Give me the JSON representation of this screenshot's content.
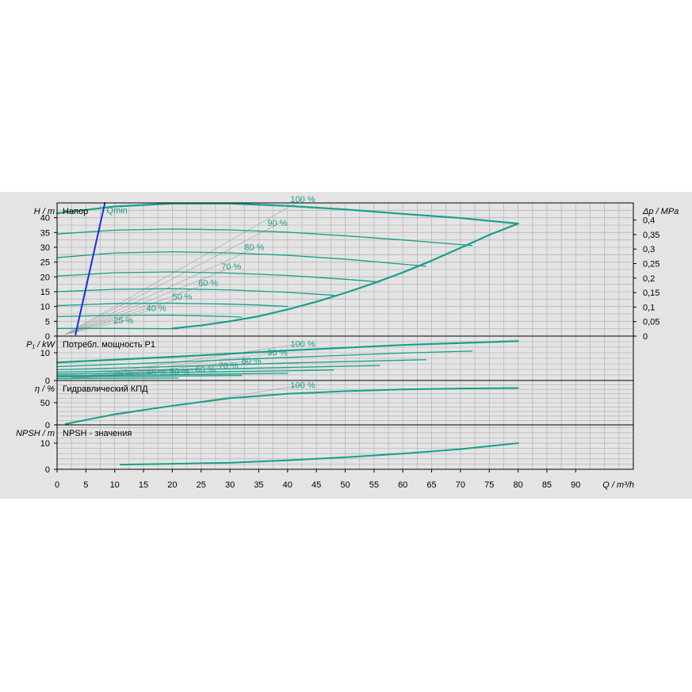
{
  "colors": {
    "panel_bg": "#e4e4e4",
    "plot_bg": "#e4e4e4",
    "grid": "#b8b8b8",
    "curve": "#16a08a",
    "curve_thin": "#2aa88e",
    "label_teal": "#1aa08a",
    "guide": "#a0a0a0",
    "qmin": "#1a2fd8",
    "axis": "#000000"
  },
  "axis": {
    "x_label": "Q / m³/h",
    "x_ticks": [
      0,
      5,
      10,
      15,
      20,
      25,
      30,
      35,
      40,
      45,
      50,
      55,
      60,
      65,
      70,
      75,
      80,
      85,
      90
    ]
  },
  "chart_data": [
    {
      "type": "line",
      "panel": "head",
      "title": "Напор",
      "ylabel": "H / m",
      "ylabel_right": "Δp / MPa",
      "xlim": [
        0,
        100
      ],
      "ylim": [
        0,
        45
      ],
      "y_ticks": [
        0,
        5,
        10,
        15,
        20,
        25,
        30,
        35,
        40
      ],
      "y2_ticks": [
        "0",
        "0,05",
        "0,1",
        "0,15",
        "0,2",
        "0,25",
        "0,3",
        "0,35",
        "0,4"
      ],
      "qmin_label": "Qmin",
      "series": [
        {
          "name": "100 %",
          "points": [
            [
              0,
              41.5
            ],
            [
              10,
              43.8
            ],
            [
              20,
              44.8
            ],
            [
              30,
              44.8
            ],
            [
              40,
              44.0
            ],
            [
              50,
              42.8
            ],
            [
              60,
              41.3
            ],
            [
              70,
              39.9
            ],
            [
              80,
              38.0
            ]
          ]
        },
        {
          "name": "90 %",
          "points": [
            [
              0,
              34.5
            ],
            [
              10,
              35.8
            ],
            [
              20,
              36.2
            ],
            [
              30,
              35.9
            ],
            [
              40,
              35.1
            ],
            [
              50,
              33.9
            ],
            [
              60,
              32.5
            ],
            [
              65,
              31.7
            ],
            [
              72,
              30.6
            ]
          ]
        },
        {
          "name": "80 %",
          "points": [
            [
              0,
              26.5
            ],
            [
              10,
              28.1
            ],
            [
              20,
              28.5
            ],
            [
              30,
              28.1
            ],
            [
              40,
              27.3
            ],
            [
              50,
              26.0
            ],
            [
              60,
              24.3
            ],
            [
              64,
              23.6
            ]
          ]
        },
        {
          "name": "70 %",
          "points": [
            [
              0,
              20.3
            ],
            [
              10,
              21.4
            ],
            [
              20,
              21.7
            ],
            [
              30,
              21.3
            ],
            [
              40,
              20.5
            ],
            [
              50,
              19.2
            ],
            [
              56,
              18.3
            ]
          ]
        },
        {
          "name": "60 %",
          "points": [
            [
              0,
              15.0
            ],
            [
              10,
              15.8
            ],
            [
              20,
              16.0
            ],
            [
              30,
              15.6
            ],
            [
              40,
              14.8
            ],
            [
              48,
              13.8
            ]
          ]
        },
        {
          "name": "50 %",
          "points": [
            [
              0,
              10.3
            ],
            [
              10,
              11.0
            ],
            [
              20,
              11.1
            ],
            [
              30,
              10.8
            ],
            [
              35,
              10.5
            ],
            [
              40,
              10.0
            ]
          ]
        },
        {
          "name": "40 %",
          "points": [
            [
              0,
              6.6
            ],
            [
              10,
              7.0
            ],
            [
              20,
              7.1
            ],
            [
              30,
              6.6
            ],
            [
              32,
              6.4
            ]
          ]
        },
        {
          "name": "25 %",
          "points": [
            [
              0,
              2.6
            ],
            [
              10,
              2.6
            ],
            [
              20,
              2.5
            ],
            [
              21,
              2.5
            ]
          ]
        },
        {
          "name": "",
          "points": [
            [
              20,
              2.6
            ],
            [
              25,
              3.6
            ],
            [
              30,
              5.0
            ],
            [
              35,
              6.7
            ],
            [
              40,
              9.0
            ],
            [
              45,
              11.6
            ],
            [
              50,
              14.6
            ],
            [
              55,
              17.9
            ],
            [
              60,
              21.5
            ],
            [
              65,
              25.5
            ],
            [
              70,
              29.8
            ],
            [
              75,
              34.2
            ],
            [
              80,
              38.0
            ]
          ]
        },
        {
          "name": "Qmin",
          "points": [
            [
              3.2,
              0.5
            ],
            [
              8.3,
              45
            ]
          ]
        }
      ],
      "labels": [
        {
          "text": "100 %",
          "at": [
            40.5,
            45.3
          ]
        },
        {
          "text": "90 %",
          "at": [
            36.5,
            37.2
          ]
        },
        {
          "text": "80 %",
          "at": [
            32.5,
            29.0
          ]
        },
        {
          "text": "70 %",
          "at": [
            28.5,
            22.5
          ]
        },
        {
          "text": "60 %",
          "at": [
            24.5,
            17.0
          ]
        },
        {
          "text": "50 %",
          "at": [
            20.0,
            12.3
          ]
        },
        {
          "text": "40 %",
          "at": [
            15.5,
            8.5
          ]
        },
        {
          "text": "25 %",
          "at": [
            9.8,
            4.3
          ]
        }
      ]
    },
    {
      "type": "line",
      "panel": "power",
      "title": "Потребл. мощность P1",
      "ylabel": "P₁ / kW",
      "xlim": [
        0,
        100
      ],
      "ylim": [
        0,
        16
      ],
      "y_ticks": [
        0,
        10
      ],
      "series": [
        {
          "name": "100 %",
          "points": [
            [
              0,
              6.5
            ],
            [
              20,
              8.5
            ],
            [
              40,
              10.8
            ],
            [
              60,
              12.8
            ],
            [
              80,
              14.2
            ]
          ]
        },
        {
          "name": "90 %",
          "points": [
            [
              0,
              5.0
            ],
            [
              20,
              6.6
            ],
            [
              40,
              8.3
            ],
            [
              60,
              9.9
            ],
            [
              72,
              10.6
            ]
          ]
        },
        {
          "name": "80 %",
          "points": [
            [
              0,
              3.9
            ],
            [
              20,
              5.0
            ],
            [
              40,
              6.3
            ],
            [
              64,
              7.5
            ]
          ]
        },
        {
          "name": "70 %",
          "points": [
            [
              0,
              3.0
            ],
            [
              20,
              3.8
            ],
            [
              40,
              4.7
            ],
            [
              56,
              5.4
            ]
          ]
        },
        {
          "name": "60 %",
          "points": [
            [
              0,
              2.3
            ],
            [
              20,
              2.9
            ],
            [
              40,
              3.5
            ],
            [
              48,
              3.8
            ]
          ]
        },
        {
          "name": "50 %",
          "points": [
            [
              0,
              1.7
            ],
            [
              20,
              2.1
            ],
            [
              40,
              2.6
            ]
          ]
        },
        {
          "name": "45 %",
          "points": [
            [
              0,
              1.3
            ],
            [
              20,
              1.6
            ],
            [
              32,
              1.8
            ]
          ]
        },
        {
          "name": "25 %",
          "points": [
            [
              0,
              0.7
            ],
            [
              10,
              0.8
            ],
            [
              21,
              0.9
            ]
          ]
        }
      ],
      "labels": [
        {
          "text": "100 %",
          "at": [
            40.5,
            12.2
          ]
        },
        {
          "text": "90 %",
          "at": [
            36.5,
            9.0
          ]
        },
        {
          "text": "80 %",
          "at": [
            32.0,
            6.0
          ]
        },
        {
          "text": "70 %",
          "at": [
            28.0,
            4.3
          ]
        },
        {
          "text": "60 %",
          "at": [
            24.0,
            3.0
          ]
        },
        {
          "text": "50 %",
          "at": [
            19.5,
            2.1
          ]
        },
        {
          "text": "45 %",
          "at": [
            15.5,
            1.9
          ]
        },
        {
          "text": "25 %",
          "at": [
            9.8,
            1.4
          ]
        }
      ]
    },
    {
      "type": "line",
      "panel": "efficiency",
      "title": "Гидравлический КПД",
      "ylabel": "η / %",
      "xlim": [
        0,
        100
      ],
      "ylim": [
        0,
        100
      ],
      "y_ticks": [
        0,
        50
      ],
      "series": [
        {
          "name": "100 %",
          "points": [
            [
              1.5,
              2
            ],
            [
              10,
              24
            ],
            [
              20,
              43
            ],
            [
              30,
              60
            ],
            [
              40,
              70
            ],
            [
              50,
              76
            ],
            [
              60,
              80
            ],
            [
              70,
              82
            ],
            [
              80,
              83
            ]
          ]
        }
      ],
      "labels": [
        {
          "text": "100 %",
          "at": [
            40.5,
            83
          ]
        }
      ]
    },
    {
      "type": "line",
      "panel": "npsh",
      "title": "NPSH - значения",
      "ylabel": "NPSH / m",
      "xlim": [
        0,
        100
      ],
      "ylim": [
        0,
        17
      ],
      "y_ticks": [
        0,
        10
      ],
      "series": [
        {
          "name": "NPSH",
          "points": [
            [
              11,
              1.8
            ],
            [
              20,
              2.1
            ],
            [
              30,
              2.5
            ],
            [
              40,
              3.4
            ],
            [
              50,
              4.6
            ],
            [
              60,
              6.0
            ],
            [
              70,
              7.7
            ],
            [
              80,
              10.0
            ]
          ]
        }
      ],
      "labels": []
    }
  ]
}
